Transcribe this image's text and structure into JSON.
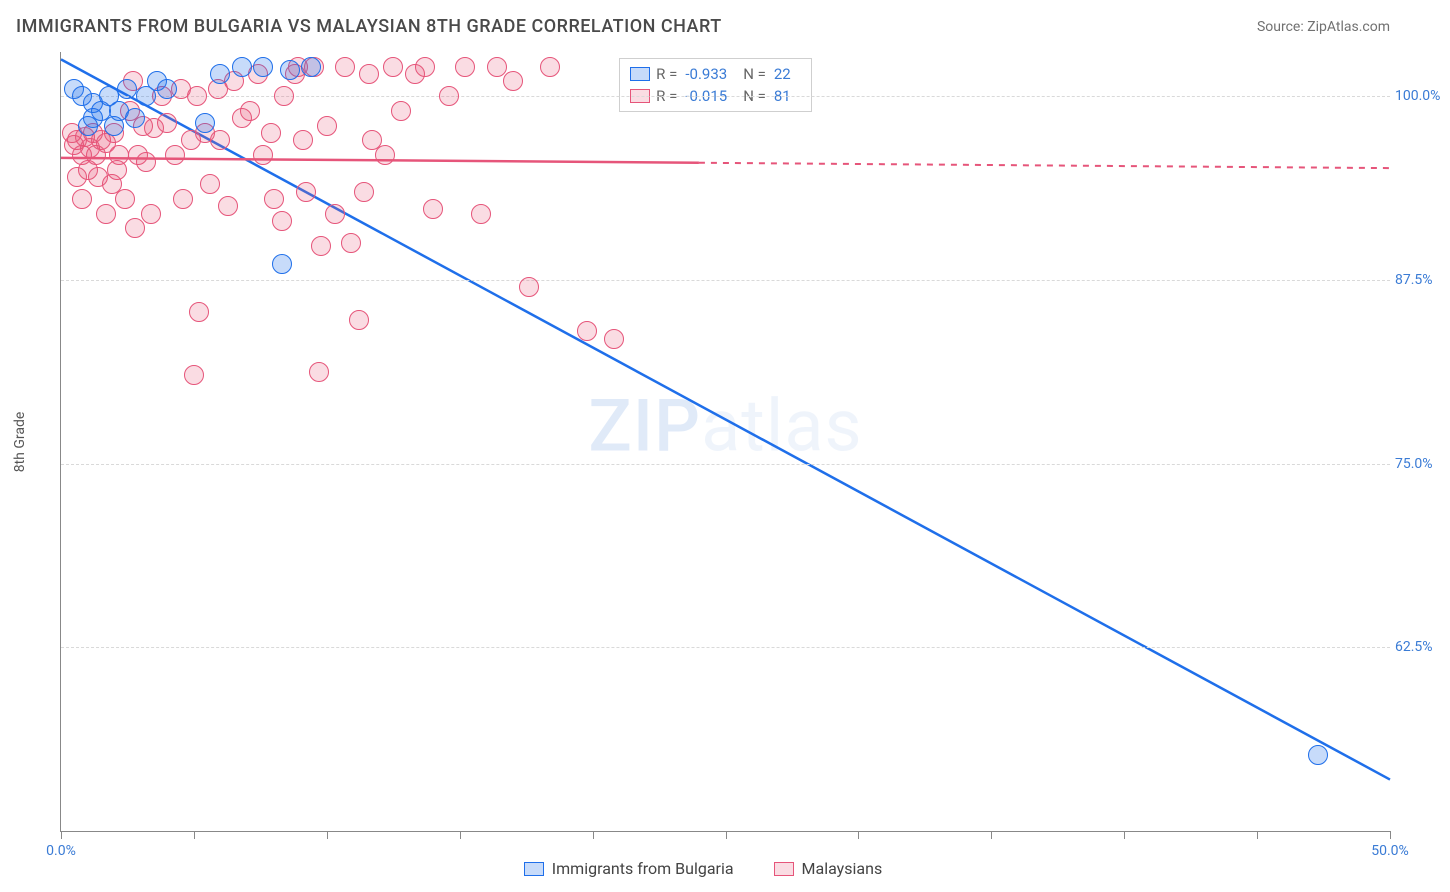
{
  "title": "IMMIGRANTS FROM BULGARIA VS MALAYSIAN 8TH GRADE CORRELATION CHART",
  "source": "Source: ZipAtlas.com",
  "watermark_bold": "ZIP",
  "watermark_light": "atlas",
  "ylabel": "8th Grade",
  "bottom_legend": {
    "series1": "Immigrants from Bulgaria",
    "series2": "Malaysians"
  },
  "colors": {
    "blue_stroke": "#1f6fea",
    "blue_fill": "#1f6fea40",
    "pink_stroke": "#e6557a",
    "pink_fill": "#e6557a35",
    "grid": "#d9d9d9",
    "axis": "#888888",
    "tick_text": "#3a7bd5",
    "text": "#4a4a4a"
  },
  "stats": [
    {
      "r_label": "R =",
      "r": "-0.933",
      "n_label": "N =",
      "n": "22",
      "swatch": "blue"
    },
    {
      "r_label": "R =",
      "r": "-0.015",
      "n_label": "N =",
      "n": "81",
      "swatch": "pink"
    }
  ],
  "chart": {
    "type": "scatter",
    "xlim": [
      0,
      50
    ],
    "ylim": [
      50,
      103
    ],
    "xtick_positions": [
      0,
      5,
      10,
      15,
      20,
      25,
      30,
      35,
      40,
      45,
      50
    ],
    "xtick_labels": {
      "0": "0.0%",
      "50": "50.0%"
    },
    "ytick_positions": [
      62.5,
      75.0,
      87.5,
      100.0
    ],
    "ytick_labels": [
      "62.5%",
      "75.0%",
      "87.5%",
      "100.0%"
    ],
    "marker_radius": 10,
    "series": [
      {
        "name": "bulgaria",
        "color_stroke": "#1f6fea",
        "color_fill": "#1f6fea40",
        "points": [
          [
            0.5,
            100.5
          ],
          [
            0.8,
            100
          ],
          [
            1.2,
            99.5
          ],
          [
            1.5,
            99
          ],
          [
            1.2,
            98.5
          ],
          [
            1.0,
            98
          ],
          [
            1.8,
            100
          ],
          [
            2.2,
            99
          ],
          [
            2.5,
            100.5
          ],
          [
            2.0,
            98
          ],
          [
            2.8,
            98.5
          ],
          [
            3.2,
            100
          ],
          [
            4.0,
            100.5
          ],
          [
            3.6,
            101
          ],
          [
            5.4,
            98.2
          ],
          [
            6.0,
            101.5
          ],
          [
            6.8,
            102
          ],
          [
            7.6,
            102
          ],
          [
            8.6,
            101.8
          ],
          [
            9.4,
            102
          ],
          [
            8.3,
            88.6
          ],
          [
            47.3,
            55.2
          ]
        ],
        "fit_line": {
          "x1": 0,
          "y1": 102.5,
          "x2": 50,
          "y2": 53.5,
          "solid_until_x": 50
        }
      },
      {
        "name": "malaysians",
        "color_stroke": "#e6557a",
        "color_fill": "#e6557a35",
        "points": [
          [
            0.4,
            97.5
          ],
          [
            0.6,
            97
          ],
          [
            0.5,
            96.7
          ],
          [
            0.8,
            96
          ],
          [
            0.9,
            97.2
          ],
          [
            1.0,
            95
          ],
          [
            1.2,
            97.5
          ],
          [
            1.3,
            96
          ],
          [
            1.1,
            96.5
          ],
          [
            1.5,
            97
          ],
          [
            0.8,
            93
          ],
          [
            1.4,
            94.5
          ],
          [
            1.7,
            96.8
          ],
          [
            1.7,
            92
          ],
          [
            1.9,
            94
          ],
          [
            2.0,
            97.5
          ],
          [
            2.2,
            96
          ],
          [
            2.1,
            95
          ],
          [
            2.4,
            93
          ],
          [
            2.6,
            99
          ],
          [
            2.7,
            101
          ],
          [
            2.9,
            96
          ],
          [
            3.1,
            98
          ],
          [
            3.2,
            95.5
          ],
          [
            3.4,
            92
          ],
          [
            3.5,
            97.8
          ],
          [
            3.8,
            100
          ],
          [
            4.0,
            98.2
          ],
          [
            2.8,
            91
          ],
          [
            4.3,
            96
          ],
          [
            4.5,
            100.5
          ],
          [
            4.6,
            93
          ],
          [
            4.9,
            97
          ],
          [
            5.1,
            100
          ],
          [
            5.4,
            97.5
          ],
          [
            5.2,
            85.3
          ],
          [
            5.6,
            94
          ],
          [
            5.9,
            100.5
          ],
          [
            6.0,
            97
          ],
          [
            6.3,
            92.5
          ],
          [
            6.5,
            101
          ],
          [
            6.8,
            98.5
          ],
          [
            5.0,
            81.0
          ],
          [
            7.1,
            99
          ],
          [
            7.4,
            101.5
          ],
          [
            7.6,
            96
          ],
          [
            7.9,
            97.5
          ],
          [
            8.0,
            93
          ],
          [
            8.4,
            100
          ],
          [
            8.3,
            91.5
          ],
          [
            8.8,
            101.5
          ],
          [
            8.9,
            102
          ],
          [
            9.1,
            97
          ],
          [
            9.2,
            93.5
          ],
          [
            9.5,
            102
          ],
          [
            9.8,
            89.8
          ],
          [
            10.0,
            98
          ],
          [
            10.3,
            92
          ],
          [
            9.7,
            81.2
          ],
          [
            10.7,
            102
          ],
          [
            10.9,
            90
          ],
          [
            11.4,
            93.5
          ],
          [
            11.6,
            101.5
          ],
          [
            11.7,
            97
          ],
          [
            12.2,
            96
          ],
          [
            12.5,
            102
          ],
          [
            12.8,
            99
          ],
          [
            13.3,
            101.5
          ],
          [
            13.7,
            102
          ],
          [
            14.0,
            92.3
          ],
          [
            14.6,
            100
          ],
          [
            15.2,
            102
          ],
          [
            15.8,
            92.0
          ],
          [
            16.4,
            102
          ],
          [
            17.0,
            101
          ],
          [
            17.6,
            87.0
          ],
          [
            18.4,
            102
          ],
          [
            19.8,
            84.0
          ],
          [
            20.8,
            83.5
          ],
          [
            11.2,
            84.8
          ],
          [
            0.6,
            94.5
          ]
        ],
        "fit_line": {
          "x1": 0,
          "y1": 95.8,
          "x2": 50,
          "y2": 95.1,
          "solid_until_x": 24
        }
      }
    ]
  }
}
